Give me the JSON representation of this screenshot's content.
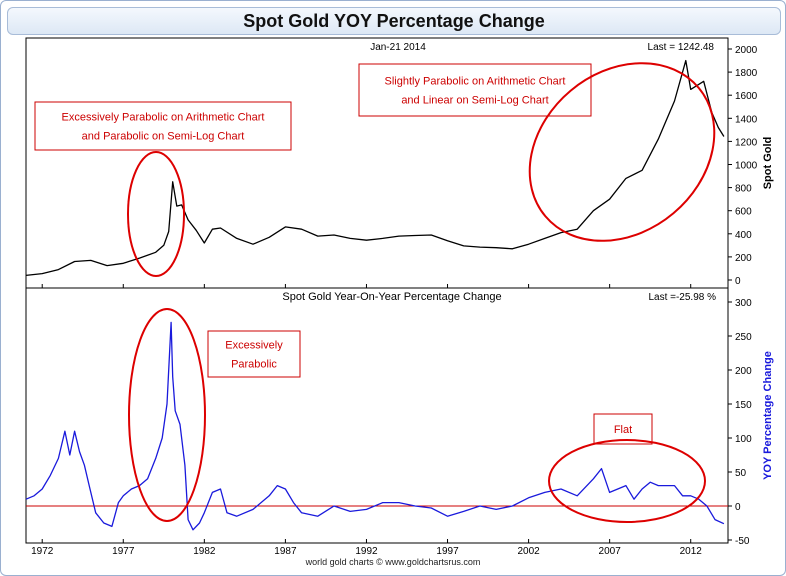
{
  "title": "Spot Gold YOY Percentage Change",
  "footer": "world gold charts © www.goldchartsrus.com",
  "chart_data": [
    {
      "type": "line",
      "date_label": "Jan-21 2014",
      "last_label": "Last = 1242.48",
      "ylabel": "Spot Gold",
      "ylim": [
        0,
        2000
      ],
      "yticks": [
        0,
        200,
        400,
        600,
        800,
        1000,
        1200,
        1400,
        1600,
        1800,
        2000
      ],
      "color": "#000000",
      "grid": false,
      "x": [
        1971,
        1972,
        1973,
        1974,
        1975,
        1976,
        1977,
        1978,
        1979,
        1979.5,
        1979.8,
        1980.05,
        1980.3,
        1980.6,
        1981,
        1981.5,
        1982,
        1982.5,
        1983,
        1984,
        1985,
        1986,
        1987,
        1988,
        1989,
        1990,
        1991,
        1992,
        1993,
        1994,
        1995,
        1996,
        1997,
        1998,
        1999,
        2000,
        2001,
        2002,
        2003,
        2004,
        2005,
        2006,
        2007,
        2008,
        2009,
        2010,
        2011,
        2011.7,
        2012,
        2012.8,
        2013.3,
        2013.7,
        2014.05
      ],
      "values": [
        40,
        55,
        90,
        160,
        170,
        125,
        145,
        190,
        240,
        300,
        420,
        850,
        640,
        650,
        520,
        430,
        320,
        440,
        450,
        360,
        310,
        370,
        460,
        440,
        380,
        390,
        360,
        345,
        360,
        380,
        385,
        390,
        340,
        295,
        285,
        280,
        270,
        310,
        360,
        410,
        440,
        600,
        700,
        880,
        950,
        1220,
        1550,
        1900,
        1650,
        1720,
        1450,
        1320,
        1242
      ]
    },
    {
      "type": "line",
      "title": "Spot Gold Year-On-Year Percentage Change",
      "last_label": "Last =-25.98 %",
      "ylabel": "YOY Percentage Change",
      "ylim": [
        -50,
        300
      ],
      "yticks": [
        -50,
        0,
        50,
        100,
        150,
        200,
        250,
        300
      ],
      "xticks": [
        1972,
        1977,
        1982,
        1987,
        1992,
        1997,
        2002,
        2007,
        2012
      ],
      "xlim": [
        1971,
        2014.3
      ],
      "color": "#1a1adc",
      "zero_line_color": "#cc0000",
      "x": [
        1971,
        1971.5,
        1972,
        1972.5,
        1973,
        1973.4,
        1973.7,
        1974,
        1974.3,
        1974.6,
        1974.9,
        1975.3,
        1975.8,
        1976.3,
        1976.7,
        1977,
        1977.5,
        1978,
        1978.5,
        1979,
        1979.4,
        1979.7,
        1979.95,
        1980.05,
        1980.2,
        1980.5,
        1980.8,
        1981,
        1981.3,
        1981.7,
        1982,
        1982.5,
        1983,
        1983.4,
        1984,
        1985,
        1986,
        1986.5,
        1987,
        1987.5,
        1988,
        1989,
        1990,
        1991,
        1992,
        1993,
        1994,
        1995,
        1996,
        1997,
        1998,
        1999,
        2000,
        2001,
        2002,
        2003,
        2004,
        2005,
        2006,
        2006.5,
        2007,
        2008,
        2008.5,
        2009,
        2009.5,
        2010,
        2011,
        2011.5,
        2012,
        2012.5,
        2013,
        2013.5,
        2014.05
      ],
      "values": [
        10,
        15,
        25,
        45,
        70,
        110,
        75,
        110,
        80,
        60,
        30,
        -10,
        -25,
        -30,
        5,
        15,
        25,
        30,
        40,
        70,
        100,
        150,
        270,
        190,
        140,
        120,
        60,
        -20,
        -35,
        -25,
        -10,
        20,
        25,
        -10,
        -15,
        -5,
        15,
        30,
        25,
        5,
        -10,
        -15,
        0,
        -8,
        -5,
        5,
        5,
        0,
        -3,
        -15,
        -8,
        0,
        -5,
        0,
        12,
        20,
        25,
        15,
        40,
        55,
        20,
        30,
        10,
        25,
        35,
        30,
        30,
        15,
        15,
        10,
        0,
        -20,
        -26
      ]
    }
  ],
  "annotations": [
    {
      "id": "top-left",
      "lines": [
        "Excessively Parabolic on Arithmetic Chart",
        "and Parabolic on Semi-Log Chart"
      ]
    },
    {
      "id": "top-right",
      "lines": [
        "Slightly Parabolic on Arithmetic Chart",
        "and Linear on Semi-Log Chart"
      ]
    },
    {
      "id": "bottom-left",
      "lines": [
        "Excessively",
        "Parabolic"
      ]
    },
    {
      "id": "bottom-right",
      "lines": [
        "Flat"
      ]
    }
  ]
}
